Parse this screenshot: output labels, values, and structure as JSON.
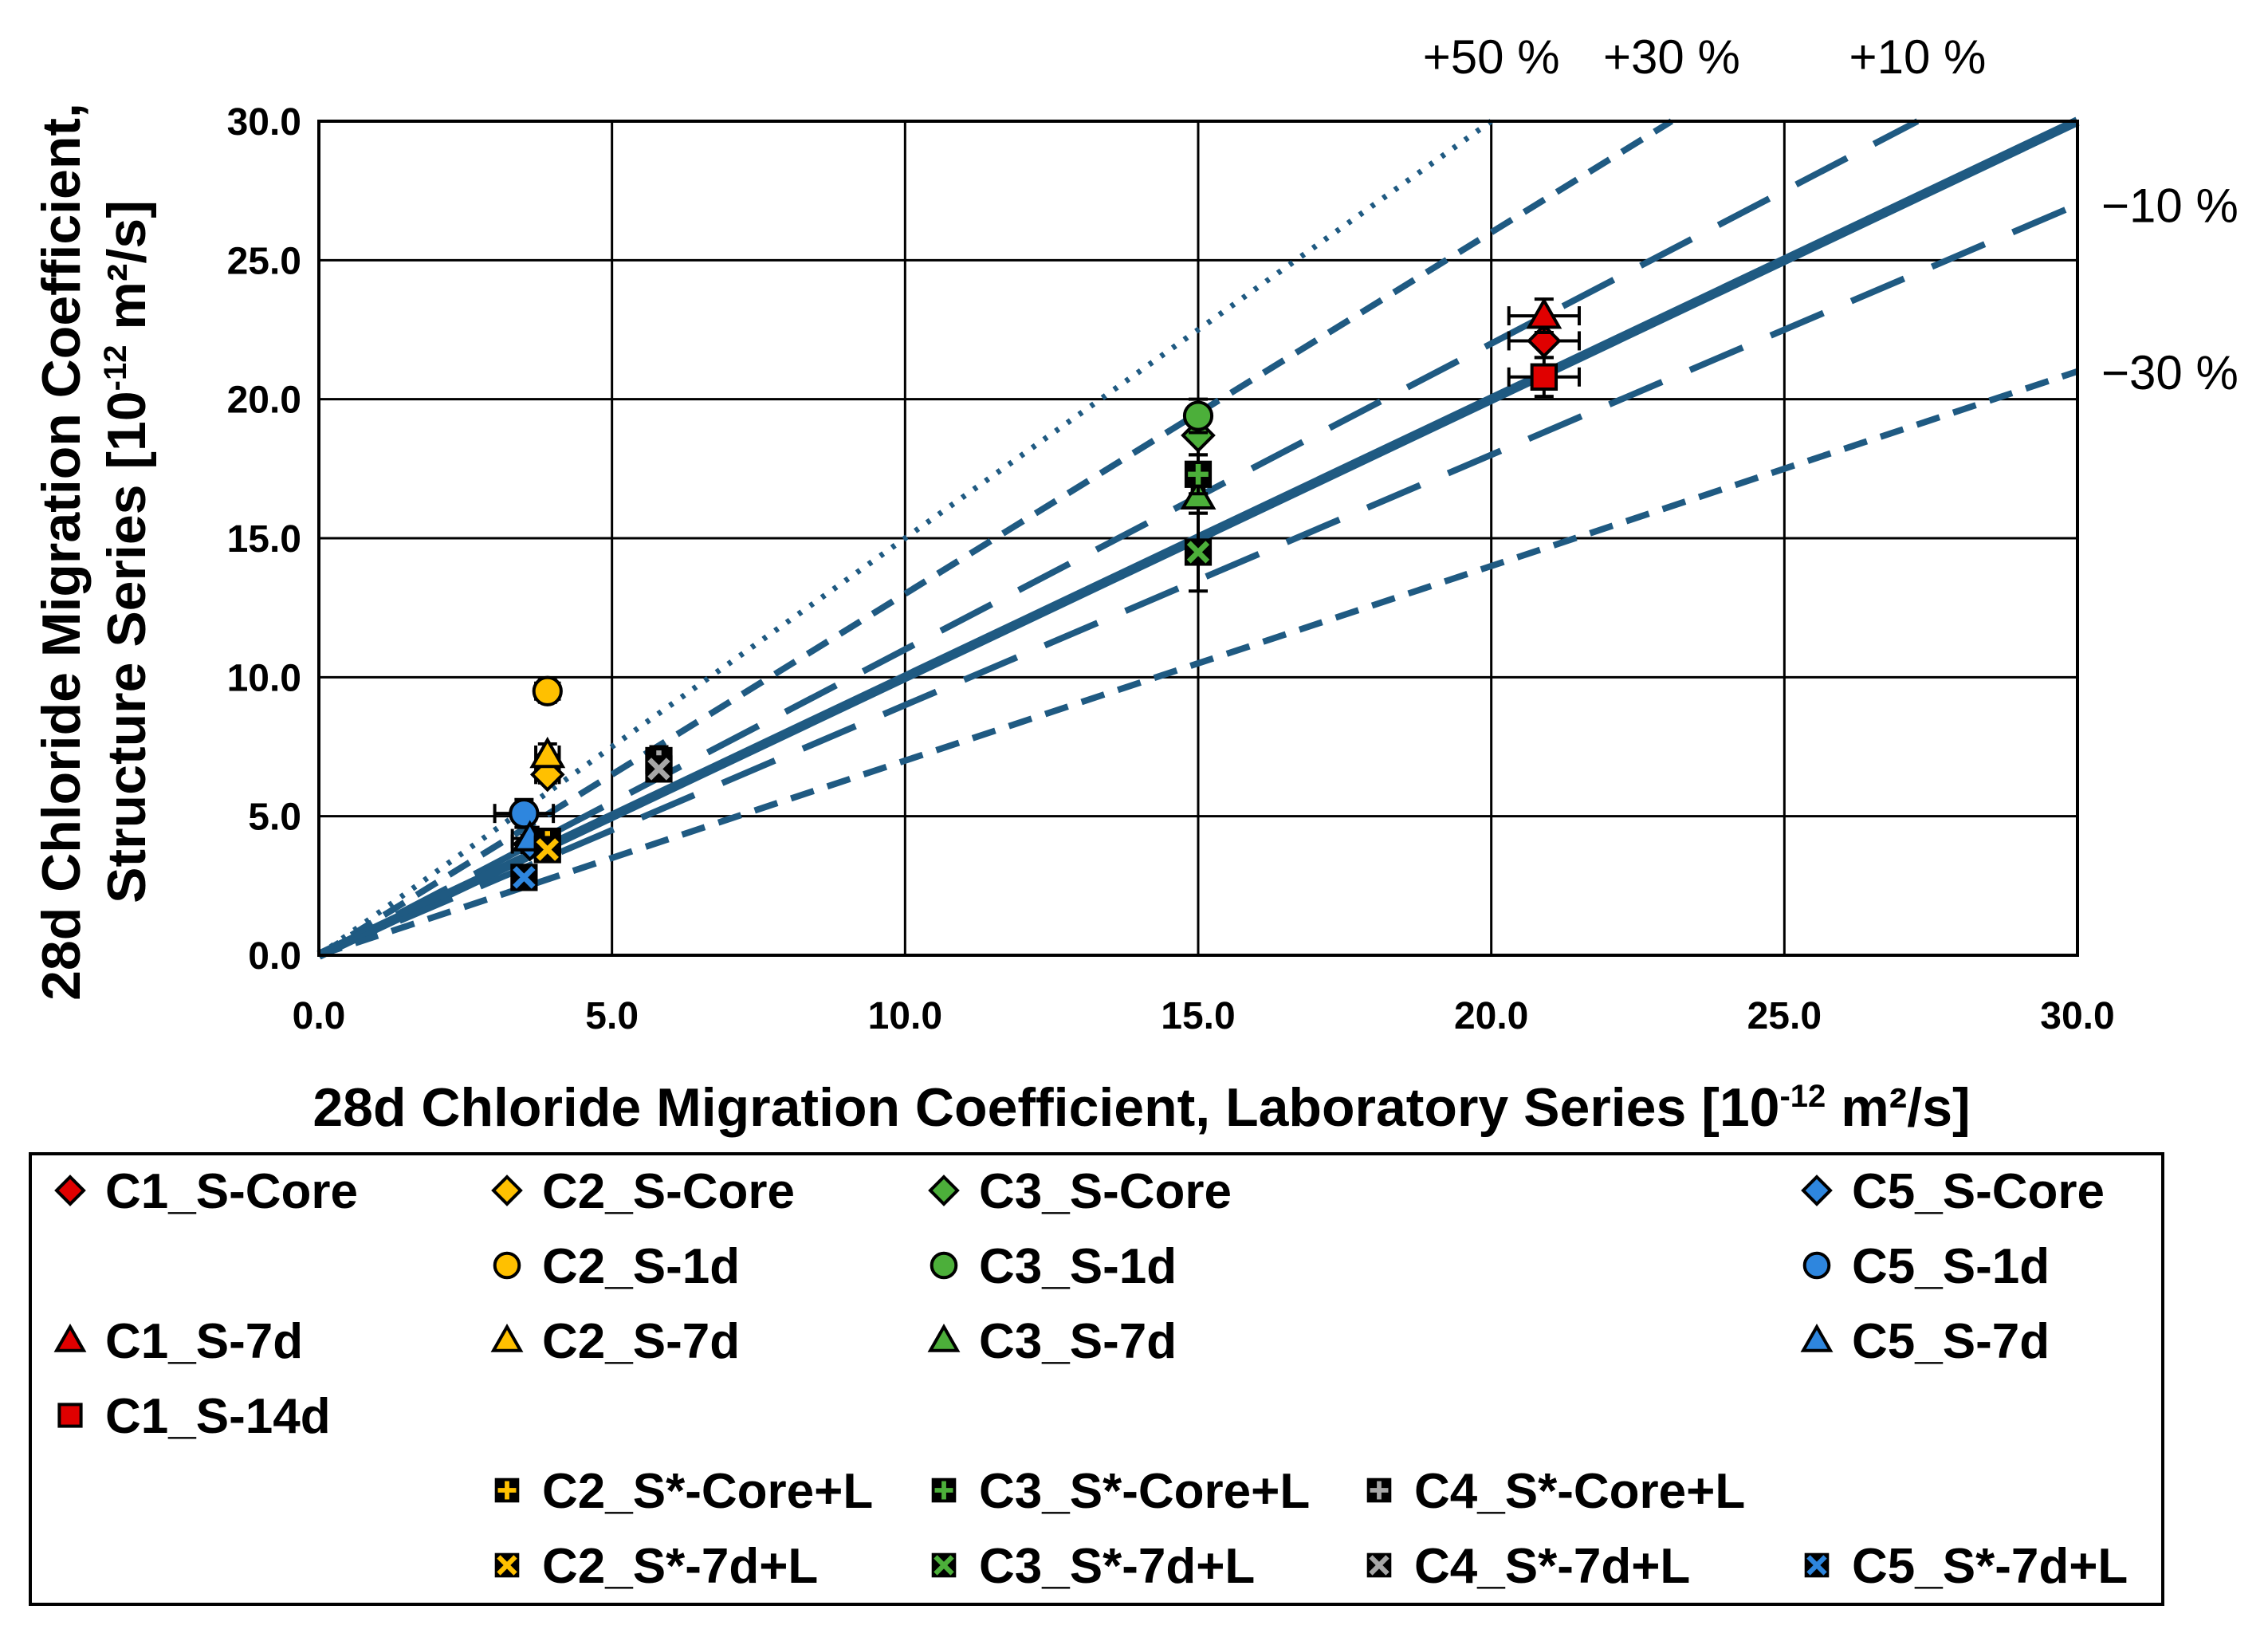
{
  "chart_data": {
    "type": "scatter",
    "title": "",
    "xlabel": {
      "main": "28d Chloride Migration Coefficient, Laboratory Series [10",
      "exp": "-12",
      "unit": " m²/s]"
    },
    "ylabel": {
      "line1": "28d Chloride Migration Coefficient,",
      "line2_main": "Structure Series [10",
      "exp": "-12",
      "unit": " m²/s]"
    },
    "xlim": [
      0,
      30
    ],
    "ylim": [
      0,
      30
    ],
    "grid": true,
    "x_ticks": [
      "0.0",
      "5.0",
      "10.0",
      "15.0",
      "20.0",
      "25.0",
      "30.0"
    ],
    "y_ticks": [
      "0.0",
      "5.0",
      "10.0",
      "15.0",
      "20.0",
      "25.0",
      "30.0"
    ],
    "reference_lines": [
      {
        "label": "+50 %",
        "slope": 1.5,
        "style": "dotted"
      },
      {
        "label": "+30 %",
        "slope": 1.3,
        "style": "short-dash"
      },
      {
        "label": "+10 %",
        "slope": 1.1,
        "style": "long-dash"
      },
      {
        "label": "",
        "slope": 1.0,
        "style": "solid"
      },
      {
        "label": "−10 %",
        "slope": 0.9,
        "style": "long-dash"
      },
      {
        "label": "−30 %",
        "slope": 0.7,
        "style": "short-dash"
      }
    ],
    "colors": {
      "C1": "#e00000",
      "C2": "#ffc000",
      "C3": "#4caf3a",
      "C4": "#a6a6a6",
      "C5": "#2e86de",
      "line": "#1f5a82"
    },
    "series": [
      {
        "name": "C1_S-Core",
        "marker": "diamond",
        "color": "#e00000",
        "x": 20.9,
        "y": 22.1,
        "xerr": 0.6,
        "yerr": 0.6
      },
      {
        "name": "C2_S-Core",
        "marker": "diamond",
        "color": "#ffc000",
        "x": 3.9,
        "y": 6.5,
        "xerr": 0.2,
        "yerr": 0.3
      },
      {
        "name": "C3_S-Core",
        "marker": "diamond",
        "color": "#4caf3a",
        "x": 15.0,
        "y": 18.7,
        "xerr": 0.1,
        "yerr": 0.7
      },
      {
        "name": "C5_S-Core",
        "marker": "diamond",
        "color": "#2e86de",
        "x": 3.6,
        "y": 4.0,
        "xerr": 0.3,
        "yerr": 0.3
      },
      {
        "name": "C2_S-1d",
        "marker": "circle",
        "color": "#ffc000",
        "x": 3.9,
        "y": 9.5,
        "xerr": 0.2,
        "yerr": 0.4
      },
      {
        "name": "C3_S-1d",
        "marker": "circle",
        "color": "#4caf3a",
        "x": 15.0,
        "y": 19.4,
        "xerr": 0.1,
        "yerr": 0.6
      },
      {
        "name": "C5_S-1d",
        "marker": "circle",
        "color": "#2e86de",
        "x": 3.5,
        "y": 5.1,
        "xerr": 0.5,
        "yerr": 0.5
      },
      {
        "name": "C1_S-7d",
        "marker": "triangle",
        "color": "#e00000",
        "x": 20.9,
        "y": 23.0,
        "xerr": 0.6,
        "yerr": 0.6
      },
      {
        "name": "C2_S-7d",
        "marker": "triangle",
        "color": "#ffc000",
        "x": 3.9,
        "y": 7.2,
        "xerr": 0.2,
        "yerr": 0.4
      },
      {
        "name": "C3_S-7d",
        "marker": "triangle",
        "color": "#4caf3a",
        "x": 15.0,
        "y": 16.5,
        "xerr": 0.1,
        "yerr": 0.6
      },
      {
        "name": "C5_S-7d",
        "marker": "triangle",
        "color": "#2e86de",
        "x": 3.6,
        "y": 4.2,
        "xerr": 0.3,
        "yerr": 0.4
      },
      {
        "name": "C1_S-14d",
        "marker": "square",
        "color": "#e00000",
        "x": 20.9,
        "y": 20.8,
        "xerr": 0.6,
        "yerr": 0.7
      },
      {
        "name": "C2_S*-Core+L",
        "marker": "plus",
        "color": "#ffc000",
        "x": 3.9,
        "y": 4.1,
        "xerr": 0.2,
        "yerr": 0.3
      },
      {
        "name": "C3_S*-Core+L",
        "marker": "plus",
        "color": "#4caf3a",
        "x": 15.0,
        "y": 17.3,
        "xerr": 0.1,
        "yerr": 0.7
      },
      {
        "name": "C4_S*-Core+L",
        "marker": "plus",
        "color": "#a6a6a6",
        "x": 5.8,
        "y": 7.0,
        "xerr": 0.1,
        "yerr": 0.5
      },
      {
        "name": "C2_S*-7d+L",
        "marker": "cross",
        "color": "#ffc000",
        "x": 3.9,
        "y": 3.8,
        "xerr": 0.2,
        "yerr": 0.4
      },
      {
        "name": "C3_S*-7d+L",
        "marker": "cross",
        "color": "#4caf3a",
        "x": 15.0,
        "y": 14.5,
        "xerr": 0.1,
        "yerr": 1.4
      },
      {
        "name": "C4_S*-7d+L",
        "marker": "cross",
        "color": "#a6a6a6",
        "x": 5.8,
        "y": 6.7,
        "xerr": 0.1,
        "yerr": 0.4
      },
      {
        "name": "C5_S*-7d+L",
        "marker": "cross",
        "color": "#2e86de",
        "x": 3.5,
        "y": 2.8,
        "xerr": 0.2,
        "yerr": 0.3
      }
    ],
    "legend": {
      "placement": "bottom",
      "rows": [
        [
          "C1_S-Core",
          "C2_S-Core",
          "C3_S-Core",
          null,
          "C5_S-Core"
        ],
        [
          null,
          "C2_S-1d",
          "C3_S-1d",
          null,
          "C5_S-1d"
        ],
        [
          "C1_S-7d",
          "C2_S-7d",
          "C3_S-7d",
          null,
          "C5_S-7d"
        ],
        [
          "C1_S-14d",
          null,
          null,
          null,
          null
        ],
        [
          null,
          "C2_S*-Core+L",
          "C3_S*-Core+L",
          "C4_S*-Core+L",
          null
        ],
        [
          null,
          "C2_S*-7d+L",
          "C3_S*-7d+L",
          "C4_S*-7d+L",
          "C5_S*-7d+L"
        ]
      ]
    }
  }
}
